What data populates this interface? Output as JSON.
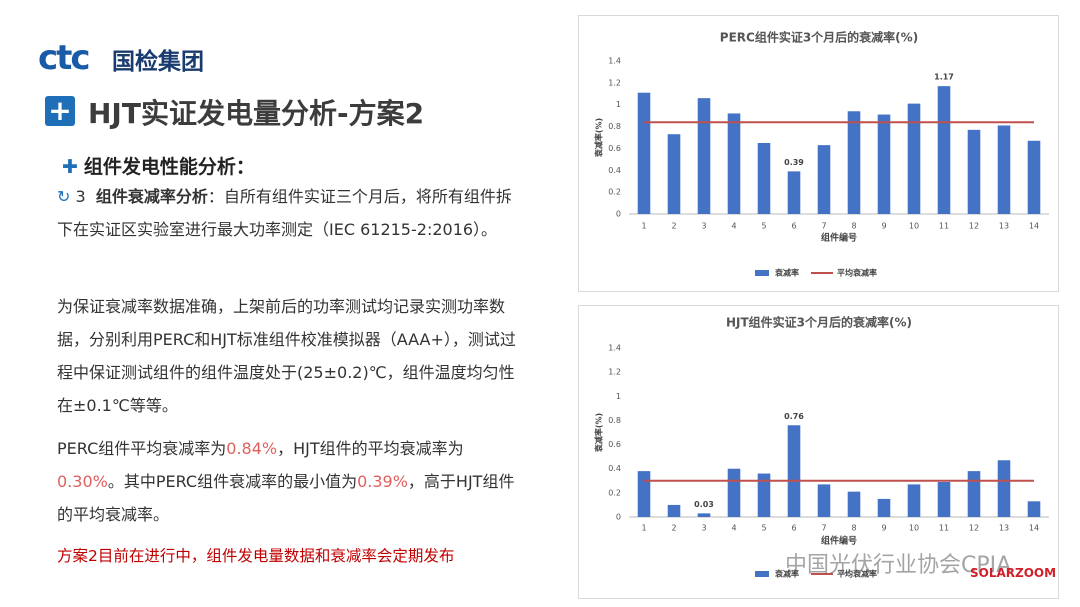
{
  "header": {
    "logo": "ctc",
    "company": "国检集团",
    "title": "HJT实证发电量分析-方案2"
  },
  "body": {
    "section": "组件发电性能分析：",
    "item_number": "3",
    "item_title": "组件衰减率分析",
    "item_text": "：自所有组件实证三个月后，将所有组件拆下在实证区实验室进行最大功率测定（IEC 61215-2:2016）。",
    "p2": "为保证衰减率数据准确，上架前后的功率测试均记录实测功率数据，分别利用PERC和HJT标准组件校准模拟器（AAA+），测试过程中保证测试组件的组件温度处于(25±0.2)℃，组件温度均匀性在±0.1℃等等。",
    "p3": [
      "PERC组件平均衰减率为",
      "0.84%",
      "，HJT组件的平均衰减率为",
      "0.30%",
      "。其中PERC组件衰减率的最小值为",
      "0.39%",
      "，高于HJT组件的平均衰减率。"
    ],
    "p4": "方案2目前在进行中，组件发电量数据和衰减率会定期发布"
  },
  "watermark": {
    "text": "中国光伏行业协会CPIA",
    "source": "SOLARZOOM"
  },
  "chart_data": [
    {
      "type": "bar",
      "title": "PERC组件实证3个月后的衰减率(%)",
      "x_label": "组件编号",
      "y_label": "衰减率(%)",
      "categories": [
        "1",
        "2",
        "3",
        "4",
        "5",
        "6",
        "7",
        "8",
        "9",
        "10",
        "11",
        "12",
        "13",
        "14"
      ],
      "series": [
        {
          "name": "衰减率",
          "color": "#4472c4",
          "values": [
            1.11,
            0.73,
            1.06,
            0.92,
            0.65,
            0.39,
            0.63,
            0.94,
            0.91,
            1.01,
            1.17,
            0.77,
            0.81,
            0.67
          ],
          "value_labels": [
            null,
            null,
            null,
            null,
            null,
            "0.39",
            null,
            null,
            null,
            null,
            "1.17",
            null,
            null,
            null
          ]
        },
        {
          "name": "平均衰减率",
          "type": "line",
          "color": "#c0504d",
          "values": [
            0.84,
            0.84,
            0.84,
            0.84,
            0.84,
            0.84,
            0.84,
            0.84,
            0.84,
            0.84,
            0.84,
            0.84,
            0.84,
            0.84
          ]
        }
      ],
      "ylim": [
        0,
        1.4
      ],
      "yticks": [
        0,
        0.2,
        0.4,
        0.6,
        0.8,
        1,
        1.2,
        1.4
      ],
      "grid": false,
      "legend": "bottom"
    },
    {
      "type": "bar",
      "title": "HJT组件实证3个月后的衰减率(%)",
      "x_label": "组件编号",
      "y_label": "衰减率(%)",
      "categories": [
        "1",
        "2",
        "3",
        "4",
        "5",
        "6",
        "7",
        "8",
        "9",
        "10",
        "11",
        "12",
        "13",
        "14"
      ],
      "series": [
        {
          "name": "衰减率",
          "color": "#4472c4",
          "values": [
            0.38,
            0.1,
            0.03,
            0.4,
            0.36,
            0.76,
            0.27,
            0.21,
            0.15,
            0.27,
            0.29,
            0.38,
            0.47,
            0.13
          ],
          "value_labels": [
            null,
            null,
            "0.03",
            null,
            null,
            "0.76",
            null,
            null,
            null,
            null,
            null,
            null,
            null,
            null
          ]
        },
        {
          "name": "平均衰减率",
          "type": "line",
          "color": "#c0504d",
          "values": [
            0.3,
            0.3,
            0.3,
            0.3,
            0.3,
            0.3,
            0.3,
            0.3,
            0.3,
            0.3,
            0.3,
            0.3,
            0.3,
            0.3
          ]
        }
      ],
      "ylim": [
        0,
        1.4
      ],
      "yticks": [
        0,
        0.2,
        0.4,
        0.6,
        0.8,
        1,
        1.2,
        1.4
      ],
      "grid": false,
      "legend": "bottom"
    }
  ]
}
